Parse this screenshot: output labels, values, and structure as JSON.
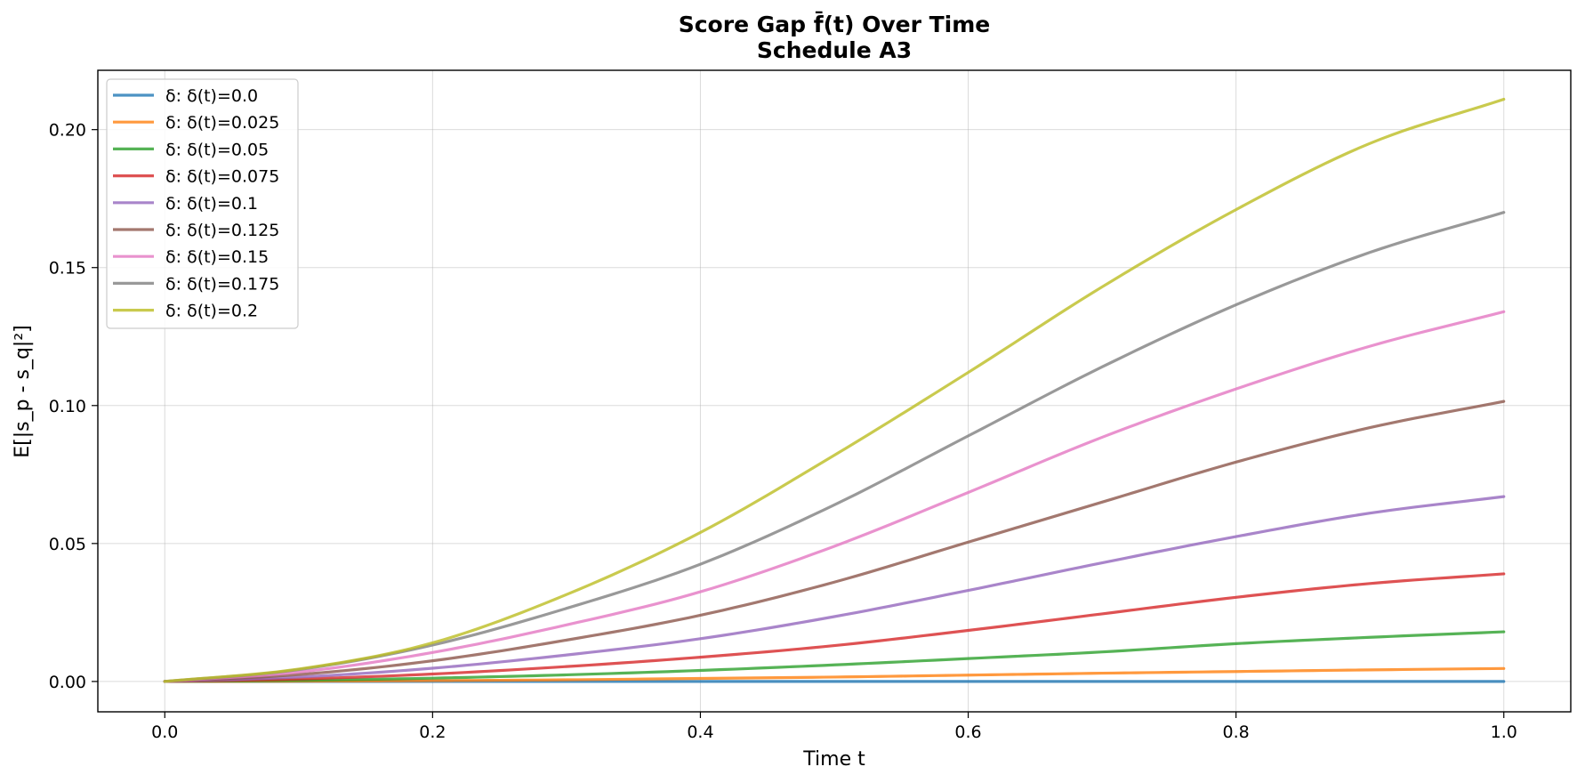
{
  "chart_data": {
    "type": "line",
    "title": "Score Gap f̄(t) Over Time",
    "subtitle": "Schedule A3",
    "xlabel": "Time t",
    "ylabel": "E[|s_p - s_q|²]",
    "xlim": [
      -0.05,
      1.05
    ],
    "ylim": [
      -0.011,
      0.2215
    ],
    "x_ticks": [
      0.0,
      0.2,
      0.4,
      0.6,
      0.8,
      1.0
    ],
    "x_tick_labels": [
      "0.0",
      "0.2",
      "0.4",
      "0.6",
      "0.8",
      "1.0"
    ],
    "y_ticks": [
      0.0,
      0.05,
      0.1,
      0.15,
      0.2
    ],
    "y_tick_labels": [
      "0.00",
      "0.05",
      "0.10",
      "0.15",
      "0.20"
    ],
    "grid": true,
    "legend_position": "top-left",
    "x": [
      0.0,
      0.1,
      0.2,
      0.3,
      0.4,
      0.5,
      0.6,
      0.7,
      0.8,
      0.9,
      1.0
    ],
    "series": [
      {
        "name": "δ: δ(t)=0.0",
        "color": "#1f77b4",
        "values": [
          0,
          0,
          0,
          0,
          0,
          0,
          0,
          0,
          0,
          0,
          0
        ]
      },
      {
        "name": "δ: δ(t)=0.025",
        "color": "#ff7f0e",
        "values": [
          0,
          0.0001,
          0.0003,
          0.0006,
          0.0011,
          0.0016,
          0.0023,
          0.003,
          0.0036,
          0.0042,
          0.0047
        ]
      },
      {
        "name": "δ: δ(t)=0.05",
        "color": "#2ca02c",
        "values": [
          0,
          0.0004,
          0.0012,
          0.0024,
          0.004,
          0.006,
          0.0083,
          0.0107,
          0.0137,
          0.016,
          0.018
        ]
      },
      {
        "name": "δ: δ(t)=0.075",
        "color": "#d62728",
        "values": [
          0,
          0.0009,
          0.0027,
          0.0054,
          0.0088,
          0.013,
          0.0185,
          0.0245,
          0.0305,
          0.0355,
          0.039
        ]
      },
      {
        "name": "δ: δ(t)=0.1",
        "color": "#9467bd",
        "values": [
          0,
          0.0016,
          0.0048,
          0.0096,
          0.0155,
          0.0235,
          0.033,
          0.043,
          0.0525,
          0.061,
          0.067
        ]
      },
      {
        "name": "δ: δ(t)=0.125",
        "color": "#8c564b",
        "values": [
          0,
          0.0025,
          0.0075,
          0.015,
          0.024,
          0.036,
          0.0505,
          0.065,
          0.0795,
          0.092,
          0.1015
        ]
      },
      {
        "name": "δ: δ(t)=0.15",
        "color": "#e377c2",
        "values": [
          0,
          0.0034,
          0.0105,
          0.0205,
          0.0325,
          0.049,
          0.0685,
          0.0885,
          0.106,
          0.1215,
          0.134
        ]
      },
      {
        "name": "δ: δ(t)=0.175",
        "color": "#7f7f7f",
        "values": [
          0,
          0.0043,
          0.0132,
          0.0265,
          0.0425,
          0.064,
          0.089,
          0.114,
          0.1365,
          0.1555,
          0.17
        ]
      },
      {
        "name": "δ: δ(t)=0.2",
        "color": "#bcbd22",
        "values": [
          0,
          0.0045,
          0.014,
          0.0315,
          0.054,
          0.082,
          0.112,
          0.143,
          0.171,
          0.195,
          0.211
        ]
      }
    ]
  }
}
